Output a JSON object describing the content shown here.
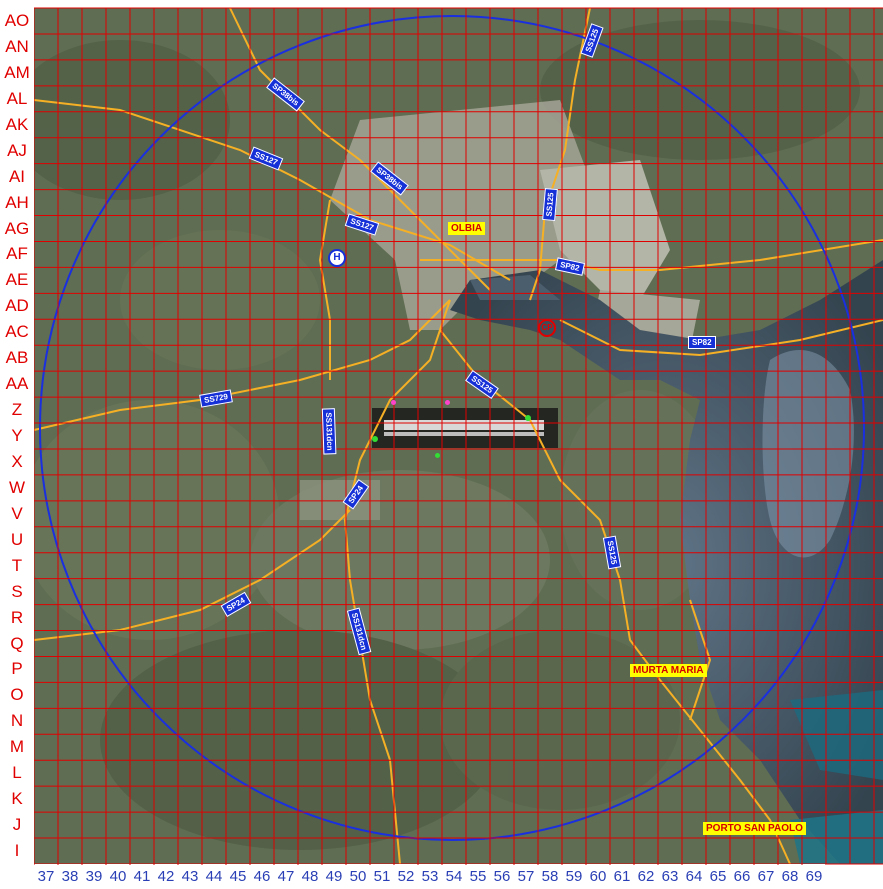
{
  "rows": [
    "AO",
    "AN",
    "AM",
    "AL",
    "AK",
    "AJ",
    "AI",
    "AH",
    "AG",
    "AF",
    "AE",
    "AD",
    "AC",
    "AB",
    "AA",
    "Z",
    "Y",
    "X",
    "W",
    "V",
    "U",
    "T",
    "S",
    "R",
    "Q",
    "P",
    "O",
    "N",
    "M",
    "L",
    "K",
    "J",
    "I"
  ],
  "columns": [
    "37",
    "38",
    "39",
    "40",
    "41",
    "42",
    "43",
    "44",
    "45",
    "46",
    "47",
    "48",
    "49",
    "50",
    "51",
    "52",
    "53",
    "54",
    "55",
    "56",
    "57",
    "58",
    "59",
    "60",
    "61",
    "62",
    "63",
    "64",
    "65",
    "66",
    "67",
    "68",
    "69"
  ],
  "places": {
    "olbia": "OLBIA",
    "murta_maria": "MURTA MARIA",
    "porto_san_paolo": "PORTO SAN PAOLO"
  },
  "roads": {
    "ss125_top": "SS125",
    "sp38bis": "SP38bis",
    "ss127_a": "SS127",
    "sp38bis_b": "SP38bis",
    "ss127_b": "SS127",
    "ss125_c": "SS125",
    "sp82_a": "SP82",
    "sp82_b": "SP82",
    "ss125_d": "SS125",
    "ss729": "SS729",
    "ss131dcn_a": "SS131dcn",
    "sp24_a": "SP24",
    "ss125_e": "SS125",
    "sp24_b": "SP24",
    "ss131dcn_b": "SS131dcn"
  },
  "markers": {
    "hospital": "H",
    "harbor": "CP"
  },
  "colors": {
    "grid": "#e00000",
    "row_label": "#e00000",
    "col_label": "#2a3fb5",
    "circle": "#1a2fe0",
    "road": "#f5b025",
    "road_tag": "#1630d8",
    "place_bg": "#ffff00",
    "place_text": "#d40000",
    "terrain": "#5d6b50",
    "sea": "#3d4f5e"
  }
}
